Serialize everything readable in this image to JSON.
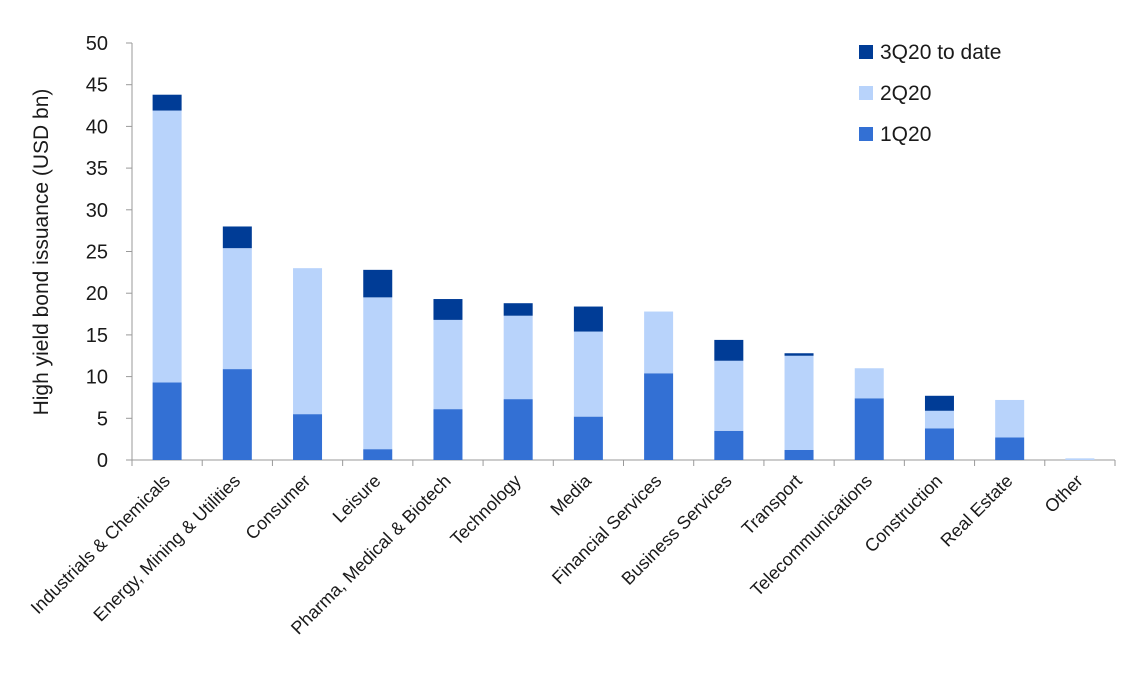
{
  "chart_data": {
    "type": "bar",
    "stacked": true,
    "title": "",
    "xlabel": "",
    "ylabel": "High yield bond issuance (USD bn)",
    "ylim": [
      0,
      50
    ],
    "yticks": [
      0,
      5,
      10,
      15,
      20,
      25,
      30,
      35,
      40,
      45,
      50
    ],
    "grid": false,
    "legend_position": "top-right",
    "categories": [
      "Industrials & Chemicals",
      "Energy, Mining & Utilities",
      "Consumer",
      "Leisure",
      "Pharma, Medical & Biotech",
      "Technology",
      "Media",
      "Financial Services",
      "Business Services",
      "Transport",
      "Telecommunications",
      "Construction",
      "Real Estate",
      "Other"
    ],
    "series": [
      {
        "name": "1Q20",
        "color": "#3370d4",
        "values": [
          9.3,
          10.9,
          5.5,
          1.3,
          6.1,
          7.3,
          5.2,
          10.4,
          3.5,
          1.2,
          7.4,
          3.8,
          2.7,
          0
        ]
      },
      {
        "name": "2Q20",
        "color": "#b8d3fb",
        "values": [
          32.6,
          14.5,
          17.5,
          18.2,
          10.7,
          10.0,
          10.2,
          7.4,
          8.4,
          11.3,
          3.6,
          2.1,
          4.5,
          0.2
        ]
      },
      {
        "name": "3Q20 to date",
        "color": "#003c96",
        "values": [
          1.9,
          2.6,
          0,
          3.3,
          2.5,
          1.5,
          3.0,
          0,
          2.5,
          0.3,
          0,
          1.8,
          0,
          0
        ]
      }
    ],
    "legend_order": [
      "3Q20 to date",
      "2Q20",
      "1Q20"
    ]
  }
}
